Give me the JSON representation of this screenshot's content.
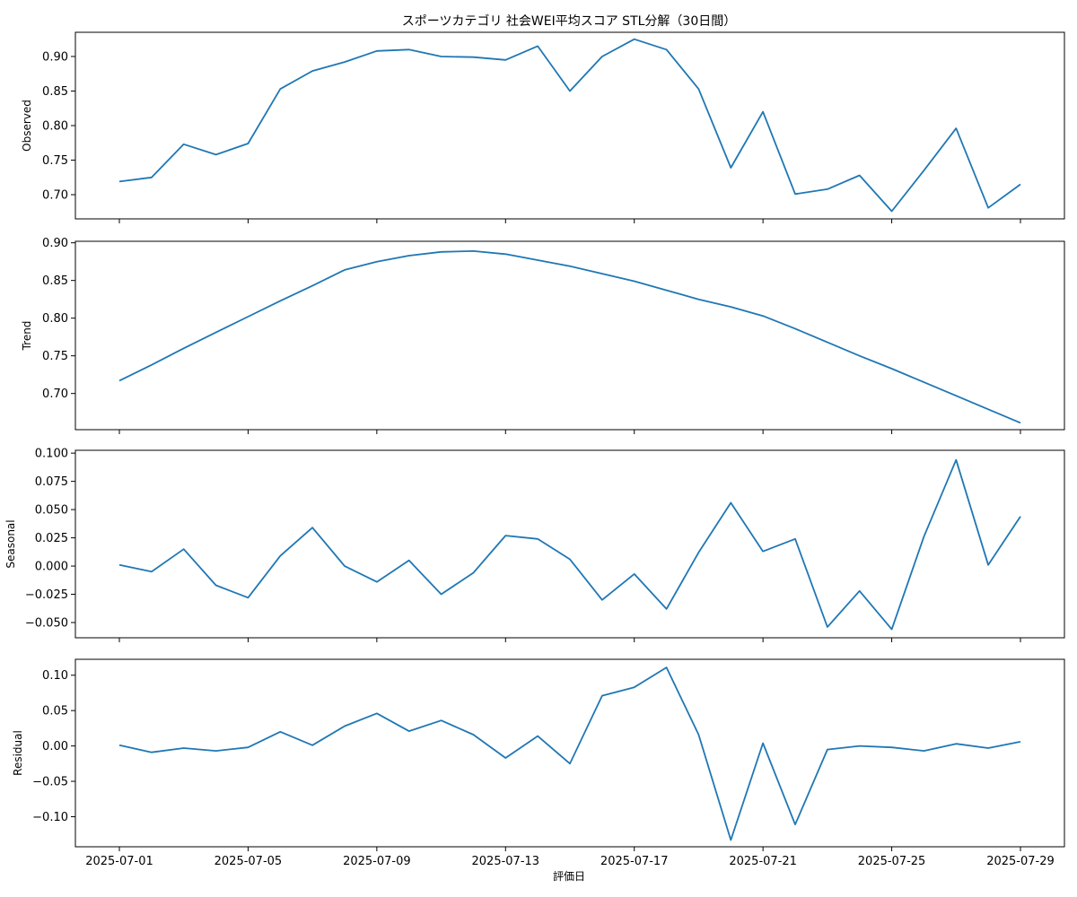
{
  "chart_data": {
    "type": "line",
    "title": "スポーツカテゴリ 社会WEI平均スコア STL分解（30日間）",
    "xlabel": "評価日",
    "x": [
      "2025-07-01",
      "2025-07-02",
      "2025-07-03",
      "2025-07-04",
      "2025-07-05",
      "2025-07-06",
      "2025-07-07",
      "2025-07-08",
      "2025-07-09",
      "2025-07-10",
      "2025-07-11",
      "2025-07-12",
      "2025-07-13",
      "2025-07-14",
      "2025-07-15",
      "2025-07-16",
      "2025-07-17",
      "2025-07-18",
      "2025-07-19",
      "2025-07-20",
      "2025-07-21",
      "2025-07-22",
      "2025-07-23",
      "2025-07-24",
      "2025-07-25",
      "2025-07-26",
      "2025-07-27",
      "2025-07-28",
      "2025-07-29"
    ],
    "x_tick_labels": [
      "2025-07-01",
      "2025-07-05",
      "2025-07-09",
      "2025-07-13",
      "2025-07-17",
      "2025-07-21",
      "2025-07-25",
      "2025-07-29"
    ],
    "line_color": "#1f77b4",
    "grid": false,
    "panels": [
      {
        "ylabel": "Observed",
        "ylim": [
          0.665,
          0.935
        ],
        "yticks": [
          0.7,
          0.75,
          0.8,
          0.85,
          0.9
        ],
        "tick_labels": [
          "0.70",
          "0.75",
          "0.80",
          "0.85",
          "0.90"
        ],
        "values": [
          0.719,
          0.725,
          0.773,
          0.758,
          0.774,
          0.853,
          0.879,
          0.892,
          0.908,
          0.91,
          0.9,
          0.899,
          0.895,
          0.915,
          0.85,
          0.9,
          0.925,
          0.91,
          0.853,
          0.739,
          0.82,
          0.701,
          0.708,
          0.728,
          0.676,
          0.735,
          0.796,
          0.681,
          0.715
        ]
      },
      {
        "ylabel": "Trend",
        "ylim": [
          0.652,
          0.902
        ],
        "yticks": [
          0.7,
          0.75,
          0.8,
          0.85,
          0.9
        ],
        "tick_labels": [
          "0.70",
          "0.75",
          "0.80",
          "0.85",
          "0.90"
        ],
        "values": [
          0.717,
          0.738,
          0.76,
          0.781,
          0.802,
          0.823,
          0.843,
          0.864,
          0.875,
          0.883,
          0.888,
          0.889,
          0.885,
          0.877,
          0.869,
          0.859,
          0.849,
          0.837,
          0.825,
          0.815,
          0.803,
          0.786,
          0.768,
          0.75,
          0.733,
          0.715,
          0.697,
          0.679,
          0.661
        ]
      },
      {
        "ylabel": "Seasonal",
        "ylim": [
          -0.0635,
          0.1025
        ],
        "yticks": [
          -0.05,
          -0.025,
          0.0,
          0.025,
          0.05,
          0.075,
          0.1
        ],
        "tick_labels": [
          "−0.050",
          "−0.025",
          "0.000",
          "0.025",
          "0.050",
          "0.075",
          "0.100"
        ],
        "values": [
          0.001,
          -0.005,
          0.015,
          -0.017,
          -0.028,
          0.009,
          0.034,
          0.0,
          -0.014,
          0.005,
          -0.025,
          -0.006,
          0.027,
          0.024,
          0.006,
          -0.03,
          -0.007,
          -0.038,
          0.012,
          0.056,
          0.013,
          0.024,
          -0.054,
          -0.022,
          -0.056,
          0.026,
          0.094,
          0.001,
          0.044
        ]
      },
      {
        "ylabel": "Residual",
        "ylim": [
          -0.1425,
          0.1225
        ],
        "yticks": [
          -0.1,
          -0.05,
          0.0,
          0.05,
          0.1
        ],
        "tick_labels": [
          "−0.10",
          "−0.05",
          "0.00",
          "0.05",
          "0.10"
        ],
        "values": [
          0.001,
          -0.009,
          -0.003,
          -0.007,
          -0.002,
          0.02,
          0.001,
          0.028,
          0.046,
          0.021,
          0.036,
          0.016,
          -0.017,
          0.014,
          -0.025,
          0.071,
          0.083,
          0.111,
          0.016,
          -0.133,
          0.004,
          -0.111,
          -0.005,
          0.0,
          -0.002,
          -0.007,
          0.003,
          -0.003,
          0.006
        ]
      }
    ]
  }
}
